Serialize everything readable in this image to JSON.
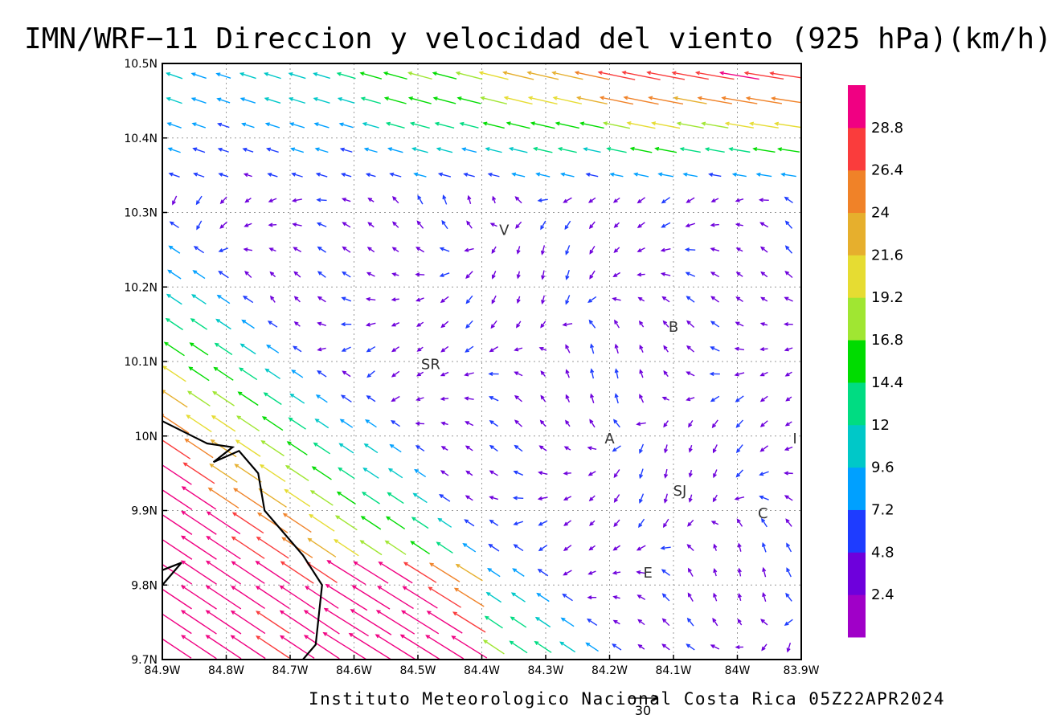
{
  "title": "IMN/WRF−11 Direccion y velocidad del viento (925 hPa)(km/h)",
  "footer": "Instituto Meteorologico Nacional Costa Rica 05Z22APR2024",
  "map": {
    "lon_range": [
      -84.9,
      -83.9
    ],
    "lat_range": [
      9.7,
      10.5
    ],
    "lon_ticks": [
      "84.9W",
      "84.8W",
      "84.7W",
      "84.6W",
      "84.5W",
      "84.4W",
      "84.3W",
      "84.2W",
      "84.1W",
      "84W",
      "83.9W"
    ],
    "lat_ticks": [
      "9.7N",
      "9.8N",
      "9.9N",
      "10N",
      "10.1N",
      "10.2N",
      "10.3N",
      "10.4N",
      "10.5N"
    ],
    "gridlines": "dotted",
    "coastline": [
      [
        -84.9,
        10.02
      ],
      [
        -84.83,
        9.99
      ],
      [
        -84.79,
        9.985
      ],
      [
        -84.82,
        9.965
      ],
      [
        -84.78,
        9.98
      ],
      [
        -84.75,
        9.95
      ],
      [
        -84.74,
        9.9
      ],
      [
        -84.68,
        9.84
      ],
      [
        -84.65,
        9.8
      ],
      [
        -84.655,
        9.76
      ],
      [
        -84.66,
        9.72
      ],
      [
        -84.68,
        9.7
      ]
    ],
    "coastline_nicoya": [
      [
        -84.9,
        9.82
      ],
      [
        -84.87,
        9.83
      ],
      [
        -84.9,
        9.8
      ]
    ],
    "places": [
      {
        "label": "V",
        "lon": -84.365,
        "lat": 10.27
      },
      {
        "label": "B",
        "lon": -84.1,
        "lat": 10.14
      },
      {
        "label": "SR",
        "lon": -84.48,
        "lat": 10.09
      },
      {
        "label": "A",
        "lon": -84.2,
        "lat": 9.99
      },
      {
        "label": "I",
        "lon": -83.91,
        "lat": 9.99
      },
      {
        "label": "SJ",
        "lon": -84.09,
        "lat": 9.92
      },
      {
        "label": "C",
        "lon": -83.96,
        "lat": 9.89
      },
      {
        "label": "E",
        "lon": -84.14,
        "lat": 9.81
      }
    ],
    "reference_vector": {
      "value": "30"
    }
  },
  "legend": {
    "labels": [
      "2.4",
      "4.8",
      "7.2",
      "9.6",
      "12",
      "14.4",
      "16.8",
      "19.2",
      "21.6",
      "24",
      "26.4",
      "28.8"
    ],
    "colors": [
      "#a000c8",
      "#6e00dc",
      "#1e3cff",
      "#00a0ff",
      "#00c8c8",
      "#00dc82",
      "#00dc00",
      "#a0e632",
      "#e6dc32",
      "#e6af2d",
      "#f08228",
      "#fa3c3c",
      "#f00082"
    ]
  },
  "colors": {
    "coastline": "#000000",
    "frame": "#000000",
    "grid": "#9a9a9a"
  }
}
